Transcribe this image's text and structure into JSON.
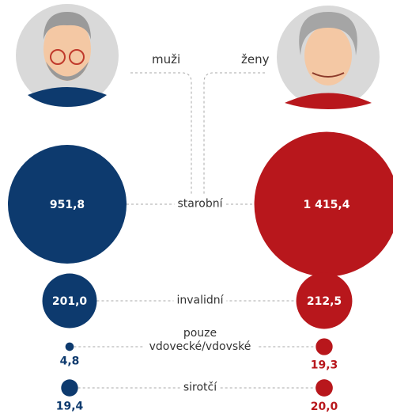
{
  "chart_data": {
    "type": "bubble",
    "categories": [
      "starobní",
      "invalidní",
      "pouze vdovecké/vdovské",
      "sirotčí"
    ],
    "series": [
      {
        "name": "muži",
        "color": "#0d3a6e",
        "values": [
          951.8,
          201.0,
          4.8,
          19.4
        ],
        "value_labels": [
          "951,8",
          "201,0",
          "4,8",
          "19,4"
        ]
      },
      {
        "name": "ženy",
        "color": "#b8171c",
        "values": [
          1415.4,
          212.5,
          19.3,
          20.0
        ],
        "value_labels": [
          "1 415,4",
          "212,5",
          "19,3",
          "20,0"
        ]
      }
    ]
  }
}
